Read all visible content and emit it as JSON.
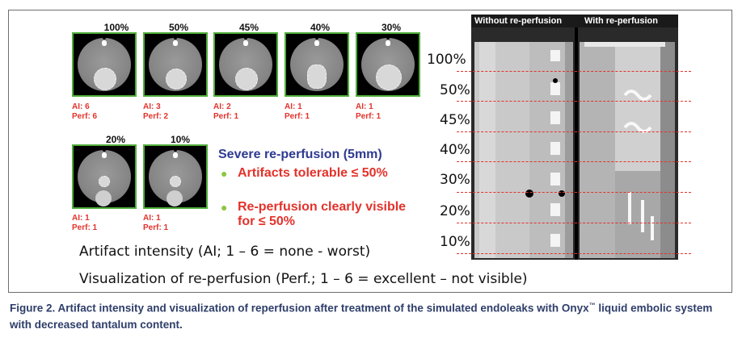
{
  "top_row": [
    {
      "pct": "100%",
      "ai": "AI: 6",
      "perf": "Perf: 6"
    },
    {
      "pct": "50%",
      "ai": "AI: 3",
      "perf": "Perf: 2"
    },
    {
      "pct": "45%",
      "ai": "AI: 2",
      "perf": "Perf: 1"
    },
    {
      "pct": "40%",
      "ai": "AI: 1",
      "perf": "Perf: 1"
    },
    {
      "pct": "30%",
      "ai": "AI: 1",
      "perf": "Perf: 1"
    }
  ],
  "bottom_row": [
    {
      "pct": "20%",
      "ai": "AI: 1",
      "perf": "Perf: 1"
    },
    {
      "pct": "10%",
      "ai": "AI: 1",
      "perf": "Perf: 1"
    }
  ],
  "summary": {
    "title": "Severe re-perfusion (5mm)",
    "bullet1": "Artifacts tolerable ≤ 50%",
    "bullet2": "Re-perfusion clearly visible for ≤ 50%"
  },
  "legend": {
    "ai": "Artifact intensity (AI; 1 – 6 = none - worst)",
    "perf": "Visualization of re-perfusion (Perf.; 1 – 6 = excellent – not visible)"
  },
  "scale_labels": [
    "100%",
    "50%",
    "45%",
    "40%",
    "30%",
    "20%",
    "10%"
  ],
  "panel": {
    "left_header": "Without re-perfusion",
    "right_header": "With re-perfusion"
  },
  "caption": {
    "prefix": "Figure 2.  Artifact intensity and visualization of reperfusion after treatment of the simulated endoleaks with Onyx",
    "tm": "™",
    "suffix": " liquid embolic system with decreased tantalum content."
  },
  "colors": {
    "frame_green": "#4fae3a",
    "score_red": "#e3322b",
    "title_blue": "#2e3a91",
    "bullet_green": "#8dc63f",
    "caption_blue": "#2e3e6a"
  }
}
